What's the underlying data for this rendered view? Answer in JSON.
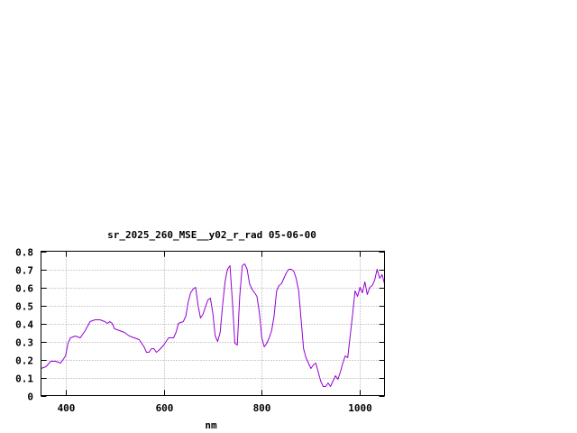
{
  "chart_data": {
    "type": "line",
    "title": "sr_2025_260_MSE__y02_r_rad 05-06-00",
    "xlabel": "nm",
    "ylabel": "",
    "xlim": [
      350,
      1050
    ],
    "ylim": [
      0,
      0.8
    ],
    "xticks": [
      400,
      600,
      800,
      1000
    ],
    "xtick_labels": [
      "400",
      "600",
      "800",
      "1000"
    ],
    "yticks": [
      0,
      0.1,
      0.2,
      0.3,
      0.4,
      0.5,
      0.6,
      0.7,
      0.8
    ],
    "ytick_labels": [
      "0",
      "0.1",
      "0.2",
      "0.3",
      "0.4",
      "0.5",
      "0.6",
      "0.7",
      "0.8"
    ],
    "grid": true,
    "legend": "none",
    "series": [
      {
        "color": "#9400d3",
        "x": [
          350,
          360,
          370,
          380,
          390,
          400,
          405,
          410,
          420,
          430,
          440,
          450,
          460,
          470,
          480,
          485,
          490,
          495,
          500,
          510,
          520,
          530,
          540,
          550,
          555,
          560,
          565,
          570,
          575,
          580,
          585,
          590,
          600,
          610,
          620,
          625,
          630,
          640,
          645,
          650,
          655,
          660,
          665,
          670,
          675,
          680,
          685,
          690,
          695,
          700,
          705,
          710,
          715,
          720,
          725,
          730,
          735,
          740,
          745,
          750,
          755,
          760,
          765,
          770,
          775,
          780,
          785,
          790,
          795,
          800,
          805,
          810,
          815,
          820,
          825,
          830,
          835,
          840,
          845,
          850,
          855,
          860,
          865,
          870,
          875,
          880,
          885,
          890,
          895,
          900,
          905,
          910,
          915,
          920,
          925,
          930,
          935,
          940,
          945,
          950,
          955,
          960,
          965,
          970,
          975,
          980,
          985,
          990,
          995,
          1000,
          1005,
          1010,
          1015,
          1020,
          1025,
          1030,
          1035,
          1040,
          1045,
          1050
        ],
        "y": [
          0.15,
          0.16,
          0.19,
          0.19,
          0.18,
          0.22,
          0.29,
          0.32,
          0.33,
          0.32,
          0.36,
          0.41,
          0.42,
          0.42,
          0.41,
          0.4,
          0.41,
          0.4,
          0.37,
          0.36,
          0.35,
          0.33,
          0.32,
          0.31,
          0.29,
          0.27,
          0.24,
          0.24,
          0.26,
          0.26,
          0.24,
          0.25,
          0.28,
          0.32,
          0.32,
          0.35,
          0.4,
          0.41,
          0.44,
          0.52,
          0.57,
          0.59,
          0.6,
          0.5,
          0.43,
          0.45,
          0.49,
          0.53,
          0.54,
          0.46,
          0.33,
          0.3,
          0.35,
          0.5,
          0.63,
          0.7,
          0.72,
          0.52,
          0.29,
          0.28,
          0.55,
          0.72,
          0.73,
          0.7,
          0.62,
          0.59,
          0.57,
          0.55,
          0.46,
          0.32,
          0.27,
          0.29,
          0.32,
          0.36,
          0.44,
          0.58,
          0.61,
          0.62,
          0.65,
          0.68,
          0.7,
          0.7,
          0.69,
          0.65,
          0.58,
          0.42,
          0.26,
          0.21,
          0.18,
          0.15,
          0.17,
          0.18,
          0.13,
          0.08,
          0.05,
          0.05,
          0.07,
          0.05,
          0.08,
          0.11,
          0.09,
          0.13,
          0.18,
          0.22,
          0.21,
          0.33,
          0.45,
          0.58,
          0.55,
          0.6,
          0.57,
          0.63,
          0.56,
          0.6,
          0.61,
          0.64,
          0.7,
          0.65,
          0.67,
          0.62
        ]
      }
    ]
  }
}
